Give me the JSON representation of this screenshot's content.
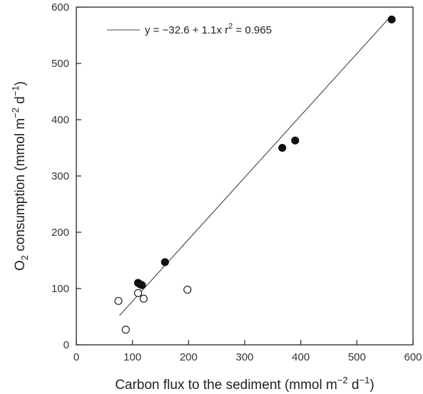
{
  "chart_data": {
    "type": "scatter",
    "title": "",
    "xlabel": {
      "pre": "Carbon flux to the sediment (mmol m",
      "sup1": "−2",
      "mid": " d",
      "sup2": "−1",
      "post": ")"
    },
    "ylabel": {
      "pre": "O",
      "sub": "2",
      "mid": " consumption (mmol m",
      "sup1": "−2",
      "mid2": " d",
      "sup2": "−1",
      "post": ")"
    },
    "xlim": [
      0,
      600
    ],
    "ylim": [
      0,
      600
    ],
    "xticks": [
      0,
      100,
      200,
      300,
      400,
      500,
      600
    ],
    "yticks": [
      0,
      100,
      200,
      300,
      400,
      500,
      600
    ],
    "grid": false,
    "legend": {
      "placement": "top-left",
      "pre": "y = −32.6 + 1.1x  r",
      "sup": "2",
      "post": " = 0.965"
    },
    "series": [
      {
        "marker": "filled",
        "x": [
          110,
          113,
          117,
          158,
          367,
          390,
          562
        ],
        "y": [
          110,
          108,
          106,
          147,
          350,
          363,
          578
        ]
      },
      {
        "marker": "open",
        "x": [
          75,
          88,
          110,
          120,
          198
        ],
        "y": [
          78,
          27,
          92,
          82,
          98
        ]
      }
    ],
    "fit_line": {
      "intercept": -32.6,
      "slope": 1.1,
      "x_range": [
        77,
        558
      ]
    },
    "colors": {
      "filled": "#111111",
      "open": "#ffffff",
      "line": "#444444",
      "axis": "#222222"
    }
  }
}
